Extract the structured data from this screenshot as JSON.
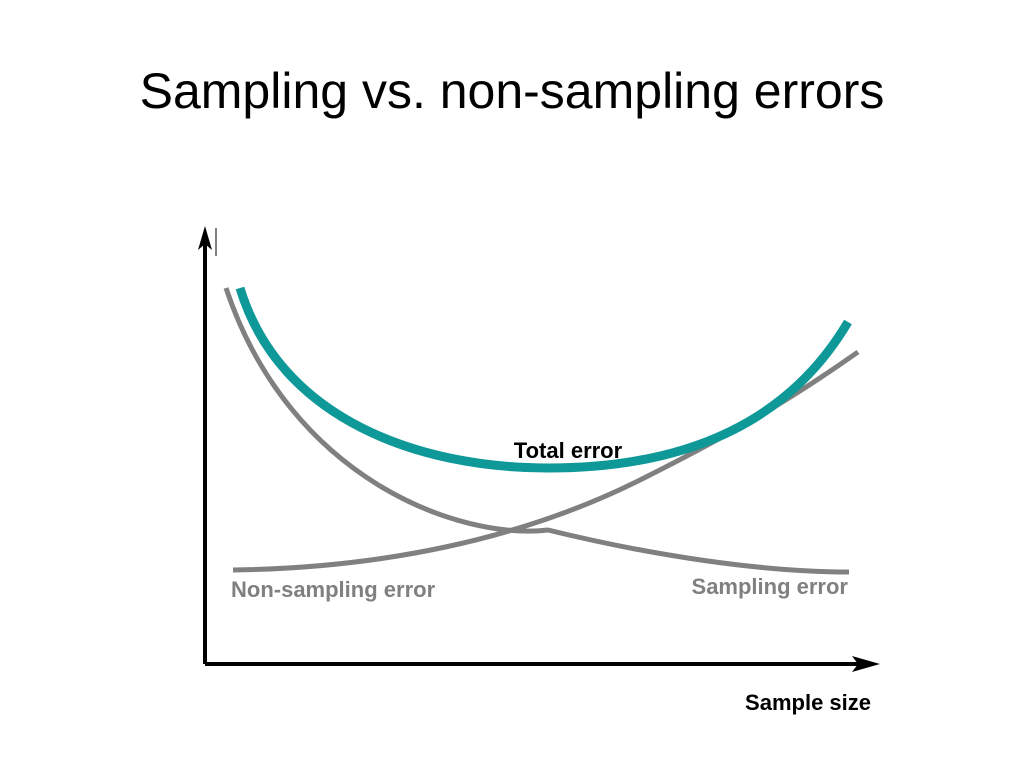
{
  "slide": {
    "title": "Sampling vs. non-sampling errors"
  },
  "diagram": {
    "x_axis_label": "Sample size",
    "labels": {
      "total": "Total error",
      "non_sampling": "Non-sampling error",
      "sampling": "Sampling error"
    },
    "colors": {
      "axis": "#000000",
      "total": "#0e9898",
      "component": "#808080",
      "total_label": "#000000",
      "component_label": "#808080"
    }
  }
}
